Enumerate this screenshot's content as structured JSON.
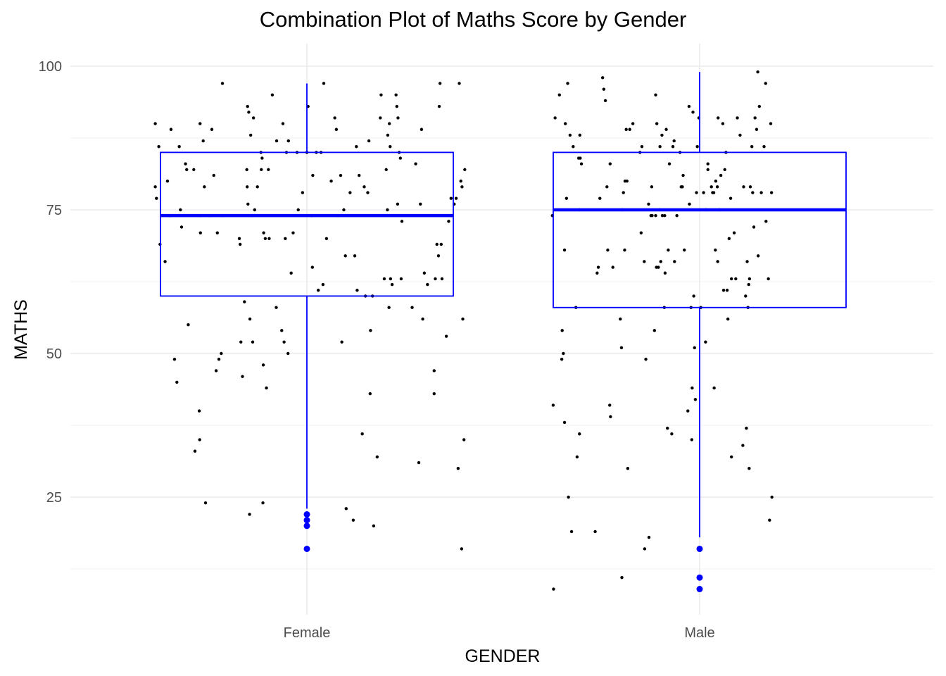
{
  "chart_data": {
    "type": "box",
    "title": "Combination Plot of Maths Score by Gender",
    "xlabel": "GENDER",
    "ylabel": "MATHS",
    "categories": [
      "Female",
      "Male"
    ],
    "y_ticks": [
      25,
      50,
      75,
      100
    ],
    "ylim": [
      5.5,
      103.5
    ],
    "grid": true,
    "colors": {
      "box": "#0000ff",
      "outlier": "#0000ff",
      "points": "#000000",
      "grid": "#ebebeb"
    },
    "boxes": [
      {
        "category": "Female",
        "whisker_low": 23,
        "q1": 60,
        "median": 74,
        "q3": 85,
        "whisker_high": 97,
        "outliers": [
          22,
          21,
          20,
          16
        ]
      },
      {
        "category": "Male",
        "whisker_low": 18,
        "q1": 58,
        "median": 75,
        "q3": 85,
        "whisker_high": 99,
        "outliers": [
          16,
          11,
          9
        ]
      }
    ],
    "jitter_points": [
      {
        "x": -0.386,
        "y": 90
      },
      {
        "x": -0.377,
        "y": 86
      },
      {
        "x": -0.386,
        "y": 79
      },
      {
        "x": -0.383,
        "y": 77
      },
      {
        "x": -0.374,
        "y": 69
      },
      {
        "x": -0.361,
        "y": 66
      },
      {
        "x": -0.355,
        "y": 80
      },
      {
        "x": -0.351,
        "y": 74
      },
      {
        "x": -0.347,
        "y": 74
      },
      {
        "x": -0.346,
        "y": 89
      },
      {
        "x": -0.337,
        "y": 49
      },
      {
        "x": -0.331,
        "y": 45
      },
      {
        "x": -0.325,
        "y": 86
      },
      {
        "x": -0.322,
        "y": 75
      },
      {
        "x": -0.319,
        "y": 72
      },
      {
        "x": -0.309,
        "y": 83
      },
      {
        "x": -0.306,
        "y": 82
      },
      {
        "x": -0.302,
        "y": 55
      },
      {
        "x": -0.288,
        "y": 82
      },
      {
        "x": -0.285,
        "y": 33
      },
      {
        "x": -0.274,
        "y": 40
      },
      {
        "x": -0.273,
        "y": 35
      },
      {
        "x": -0.272,
        "y": 90
      },
      {
        "x": -0.271,
        "y": 74
      },
      {
        "x": -0.271,
        "y": 71
      },
      {
        "x": -0.264,
        "y": 87
      },
      {
        "x": -0.261,
        "y": 79
      },
      {
        "x": -0.258,
        "y": 24
      },
      {
        "x": -0.248,
        "y": 74
      },
      {
        "x": -0.242,
        "y": 89
      },
      {
        "x": -0.237,
        "y": 81
      },
      {
        "x": -0.231,
        "y": 47
      },
      {
        "x": -0.228,
        "y": 71
      },
      {
        "x": -0.224,
        "y": 49
      },
      {
        "x": -0.218,
        "y": 50
      },
      {
        "x": -0.215,
        "y": 97
      },
      {
        "x": -0.215,
        "y": 74
      },
      {
        "x": -0.172,
        "y": 70
      },
      {
        "x": -0.17,
        "y": 69
      },
      {
        "x": -0.168,
        "y": 52
      },
      {
        "x": -0.164,
        "y": 46
      },
      {
        "x": -0.159,
        "y": 59
      },
      {
        "x": -0.153,
        "y": 82
      },
      {
        "x": -0.152,
        "y": 79
      },
      {
        "x": -0.151,
        "y": 93
      },
      {
        "x": -0.15,
        "y": 76
      },
      {
        "x": -0.148,
        "y": 92
      },
      {
        "x": -0.146,
        "y": 22
      },
      {
        "x": -0.145,
        "y": 56
      },
      {
        "x": -0.143,
        "y": 88
      },
      {
        "x": -0.14,
        "y": 74
      },
      {
        "x": -0.138,
        "y": 52
      },
      {
        "x": -0.136,
        "y": 91
      },
      {
        "x": -0.133,
        "y": 75
      },
      {
        "x": -0.126,
        "y": 79
      },
      {
        "x": -0.117,
        "y": 85
      },
      {
        "x": -0.116,
        "y": 82
      },
      {
        "x": -0.114,
        "y": 84
      },
      {
        "x": -0.112,
        "y": 24
      },
      {
        "x": -0.111,
        "y": 48
      },
      {
        "x": -0.11,
        "y": 71
      },
      {
        "x": -0.106,
        "y": 70
      },
      {
        "x": -0.103,
        "y": 44
      },
      {
        "x": -0.098,
        "y": 82
      },
      {
        "x": -0.096,
        "y": 70
      },
      {
        "x": -0.088,
        "y": 95
      },
      {
        "x": -0.078,
        "y": 58
      },
      {
        "x": -0.077,
        "y": 87
      },
      {
        "x": -0.064,
        "y": 54
      },
      {
        "x": -0.061,
        "y": 90
      },
      {
        "x": -0.058,
        "y": 52
      },
      {
        "x": -0.055,
        "y": 70
      },
      {
        "x": -0.052,
        "y": 85
      },
      {
        "x": -0.048,
        "y": 50
      },
      {
        "x": -0.047,
        "y": 87
      },
      {
        "x": -0.04,
        "y": 64
      },
      {
        "x": -0.035,
        "y": 71
      },
      {
        "x": -0.025,
        "y": 85
      },
      {
        "x": -0.022,
        "y": 75
      },
      {
        "x": -0.011,
        "y": 78
      },
      {
        "x": 0.0,
        "y": 85
      },
      {
        "x": 0.003,
        "y": 93
      },
      {
        "x": 0.012,
        "y": 74
      },
      {
        "x": 0.014,
        "y": 65
      },
      {
        "x": 0.015,
        "y": 81
      },
      {
        "x": 0.024,
        "y": 85
      },
      {
        "x": 0.029,
        "y": 61
      },
      {
        "x": 0.036,
        "y": 85
      },
      {
        "x": 0.041,
        "y": 62
      },
      {
        "x": 0.043,
        "y": 97
      },
      {
        "x": 0.05,
        "y": 70
      },
      {
        "x": 0.062,
        "y": 80
      },
      {
        "x": 0.071,
        "y": 91
      },
      {
        "x": 0.075,
        "y": 89
      },
      {
        "x": 0.079,
        "y": 74
      },
      {
        "x": 0.086,
        "y": 81
      },
      {
        "x": 0.089,
        "y": 52
      },
      {
        "x": 0.094,
        "y": 75
      },
      {
        "x": 0.098,
        "y": 67
      },
      {
        "x": 0.1,
        "y": 23
      },
      {
        "x": 0.11,
        "y": 78
      },
      {
        "x": 0.118,
        "y": 21
      },
      {
        "x": 0.122,
        "y": 67
      },
      {
        "x": 0.126,
        "y": 86
      },
      {
        "x": 0.128,
        "y": 61
      },
      {
        "x": 0.133,
        "y": 81
      },
      {
        "x": 0.141,
        "y": 36
      },
      {
        "x": 0.146,
        "y": 79
      },
      {
        "x": 0.149,
        "y": 60
      },
      {
        "x": 0.155,
        "y": 78
      },
      {
        "x": 0.158,
        "y": 87
      },
      {
        "x": 0.161,
        "y": 43
      },
      {
        "x": 0.162,
        "y": 54
      },
      {
        "x": 0.167,
        "y": 60
      },
      {
        "x": 0.17,
        "y": 20
      },
      {
        "x": 0.179,
        "y": 32
      },
      {
        "x": 0.187,
        "y": 91
      },
      {
        "x": 0.189,
        "y": 95
      },
      {
        "x": 0.197,
        "y": 63
      },
      {
        "x": 0.202,
        "y": 82
      },
      {
        "x": 0.205,
        "y": 75
      },
      {
        "x": 0.206,
        "y": 88
      },
      {
        "x": 0.209,
        "y": 58
      },
      {
        "x": 0.21,
        "y": 90
      },
      {
        "x": 0.212,
        "y": 86
      },
      {
        "x": 0.213,
        "y": 63
      },
      {
        "x": 0.217,
        "y": 62
      },
      {
        "x": 0.227,
        "y": 95
      },
      {
        "x": 0.229,
        "y": 93
      },
      {
        "x": 0.231,
        "y": 76
      },
      {
        "x": 0.232,
        "y": 91
      },
      {
        "x": 0.235,
        "y": 85
      },
      {
        "x": 0.238,
        "y": 84
      },
      {
        "x": 0.24,
        "y": 63
      },
      {
        "x": 0.242,
        "y": 73
      },
      {
        "x": 0.268,
        "y": 58
      },
      {
        "x": 0.277,
        "y": 83
      },
      {
        "x": 0.285,
        "y": 31
      },
      {
        "x": 0.289,
        "y": 76
      },
      {
        "x": 0.292,
        "y": 89
      },
      {
        "x": 0.295,
        "y": 56
      },
      {
        "x": 0.299,
        "y": 64
      },
      {
        "x": 0.307,
        "y": 62
      },
      {
        "x": 0.324,
        "y": 47
      },
      {
        "x": 0.324,
        "y": 43
      },
      {
        "x": 0.327,
        "y": 63
      },
      {
        "x": 0.331,
        "y": 69
      },
      {
        "x": 0.335,
        "y": 67
      },
      {
        "x": 0.337,
        "y": 93
      },
      {
        "x": 0.339,
        "y": 97
      },
      {
        "x": 0.342,
        "y": 69
      },
      {
        "x": 0.344,
        "y": 63
      },
      {
        "x": 0.355,
        "y": 53
      },
      {
        "x": 0.361,
        "y": 73
      },
      {
        "x": 0.367,
        "y": 77
      },
      {
        "x": 0.368,
        "y": 74
      },
      {
        "x": 0.375,
        "y": 76
      },
      {
        "x": 0.38,
        "y": 77
      },
      {
        "x": 0.385,
        "y": 30
      },
      {
        "x": 0.388,
        "y": 97
      },
      {
        "x": 0.392,
        "y": 80
      },
      {
        "x": 0.394,
        "y": 16
      },
      {
        "x": 0.395,
        "y": 79
      },
      {
        "x": 0.397,
        "y": 56
      },
      {
        "x": 0.4,
        "y": 35
      },
      {
        "x": 0.402,
        "y": 82
      },
      {
        "x": 0.625,
        "y": 74
      },
      {
        "x": 0.627,
        "y": 41
      },
      {
        "x": 0.628,
        "y": 9
      },
      {
        "x": 0.632,
        "y": 91
      },
      {
        "x": 0.643,
        "y": 95
      },
      {
        "x": 0.649,
        "y": 49
      },
      {
        "x": 0.65,
        "y": 54
      },
      {
        "x": 0.653,
        "y": 50
      },
      {
        "x": 0.656,
        "y": 68
      },
      {
        "x": 0.656,
        "y": 38
      },
      {
        "x": 0.658,
        "y": 90
      },
      {
        "x": 0.661,
        "y": 77
      },
      {
        "x": 0.664,
        "y": 97
      },
      {
        "x": 0.666,
        "y": 25
      },
      {
        "x": 0.67,
        "y": 88
      },
      {
        "x": 0.674,
        "y": 19
      },
      {
        "x": 0.678,
        "y": 86
      },
      {
        "x": 0.685,
        "y": 58
      },
      {
        "x": 0.688,
        "y": 32
      },
      {
        "x": 0.692,
        "y": 84
      },
      {
        "x": 0.694,
        "y": 36
      },
      {
        "x": 0.694,
        "y": 75
      },
      {
        "x": 0.695,
        "y": 88
      },
      {
        "x": 0.696,
        "y": 84
      },
      {
        "x": 0.699,
        "y": 83
      },
      {
        "x": 0.734,
        "y": 19
      },
      {
        "x": 0.739,
        "y": 64
      },
      {
        "x": 0.742,
        "y": 65
      },
      {
        "x": 0.746,
        "y": 77
      },
      {
        "x": 0.753,
        "y": 98
      },
      {
        "x": 0.756,
        "y": 96
      },
      {
        "x": 0.76,
        "y": 94
      },
      {
        "x": 0.764,
        "y": 79
      },
      {
        "x": 0.766,
        "y": 68
      },
      {
        "x": 0.771,
        "y": 41
      },
      {
        "x": 0.772,
        "y": 83
      },
      {
        "x": 0.773,
        "y": 39
      },
      {
        "x": 0.779,
        "y": 65
      },
      {
        "x": 0.798,
        "y": 56
      },
      {
        "x": 0.801,
        "y": 51
      },
      {
        "x": 0.802,
        "y": 11
      },
      {
        "x": 0.803,
        "y": 75
      },
      {
        "x": 0.806,
        "y": 78
      },
      {
        "x": 0.809,
        "y": 68
      },
      {
        "x": 0.81,
        "y": 80
      },
      {
        "x": 0.813,
        "y": 89
      },
      {
        "x": 0.815,
        "y": 80
      },
      {
        "x": 0.817,
        "y": 30
      },
      {
        "x": 0.822,
        "y": 89
      },
      {
        "x": 0.83,
        "y": 90
      },
      {
        "x": 0.848,
        "y": 85
      },
      {
        "x": 0.851,
        "y": 71
      },
      {
        "x": 0.853,
        "y": 86
      },
      {
        "x": 0.859,
        "y": 66
      },
      {
        "x": 0.86,
        "y": 16
      },
      {
        "x": 0.863,
        "y": 49
      },
      {
        "x": 0.87,
        "y": 76
      },
      {
        "x": 0.871,
        "y": 18
      },
      {
        "x": 0.876,
        "y": 74
      },
      {
        "x": 0.878,
        "y": 79
      },
      {
        "x": 0.879,
        "y": 74
      },
      {
        "x": 0.885,
        "y": 54
      },
      {
        "x": 0.888,
        "y": 74
      },
      {
        "x": 0.888,
        "y": 95
      },
      {
        "x": 0.89,
        "y": 65
      },
      {
        "x": 0.891,
        "y": 90
      },
      {
        "x": 0.895,
        "y": 65
      },
      {
        "x": 0.898,
        "y": 75
      },
      {
        "x": 0.899,
        "y": 86
      },
      {
        "x": 0.901,
        "y": 66
      },
      {
        "x": 0.904,
        "y": 88
      },
      {
        "x": 0.905,
        "y": 74
      },
      {
        "x": 0.91,
        "y": 58
      },
      {
        "x": 0.911,
        "y": 74
      },
      {
        "x": 0.912,
        "y": 64
      },
      {
        "x": 0.915,
        "y": 89
      },
      {
        "x": 0.918,
        "y": 37
      },
      {
        "x": 0.92,
        "y": 68
      },
      {
        "x": 0.923,
        "y": 83
      },
      {
        "x": 0.929,
        "y": 36
      },
      {
        "x": 0.932,
        "y": 86
      },
      {
        "x": 0.935,
        "y": 87
      },
      {
        "x": 0.936,
        "y": 66
      },
      {
        "x": 0.942,
        "y": 74
      },
      {
        "x": 0.95,
        "y": 85
      },
      {
        "x": 0.953,
        "y": 79
      },
      {
        "x": 0.956,
        "y": 79
      },
      {
        "x": 0.958,
        "y": 81
      },
      {
        "x": 0.961,
        "y": 68
      },
      {
        "x": 0.97,
        "y": 40
      },
      {
        "x": 0.973,
        "y": 93
      },
      {
        "x": 0.974,
        "y": 76
      },
      {
        "x": 0.978,
        "y": 58
      },
      {
        "x": 0.98,
        "y": 35
      },
      {
        "x": 0.981,
        "y": 44
      },
      {
        "x": 0.983,
        "y": 92
      },
      {
        "x": 0.985,
        "y": 60
      },
      {
        "x": 0.987,
        "y": 51
      },
      {
        "x": 0.989,
        "y": 42
      },
      {
        "x": 0.992,
        "y": 78
      },
      {
        "x": 0.994,
        "y": 86
      },
      {
        "x": 0.998,
        "y": 91
      },
      {
        "x": 1.003,
        "y": 58
      },
      {
        "x": 1.01,
        "y": 78
      },
      {
        "x": 1.015,
        "y": 52
      },
      {
        "x": 1.016,
        "y": 75
      },
      {
        "x": 1.021,
        "y": 82
      },
      {
        "x": 1.021,
        "y": 83
      },
      {
        "x": 1.03,
        "y": 79
      },
      {
        "x": 1.033,
        "y": 78
      },
      {
        "x": 1.036,
        "y": 78
      },
      {
        "x": 1.037,
        "y": 44
      },
      {
        "x": 1.04,
        "y": 68
      },
      {
        "x": 1.041,
        "y": 80
      },
      {
        "x": 1.045,
        "y": 79
      },
      {
        "x": 1.046,
        "y": 66
      },
      {
        "x": 1.047,
        "y": 91
      },
      {
        "x": 1.05,
        "y": 75
      },
      {
        "x": 1.054,
        "y": 81
      },
      {
        "x": 1.059,
        "y": 90
      },
      {
        "x": 1.061,
        "y": 61
      },
      {
        "x": 1.064,
        "y": 82
      },
      {
        "x": 1.067,
        "y": 85
      },
      {
        "x": 1.07,
        "y": 61
      },
      {
        "x": 1.072,
        "y": 56
      },
      {
        "x": 1.075,
        "y": 70
      },
      {
        "x": 1.079,
        "y": 77
      },
      {
        "x": 1.081,
        "y": 32
      },
      {
        "x": 1.081,
        "y": 63
      },
      {
        "x": 1.088,
        "y": 71
      },
      {
        "x": 1.092,
        "y": 63
      },
      {
        "x": 1.096,
        "y": 91
      },
      {
        "x": 1.103,
        "y": 88
      },
      {
        "x": 1.11,
        "y": 34
      },
      {
        "x": 1.112,
        "y": 79
      },
      {
        "x": 1.117,
        "y": 60
      },
      {
        "x": 1.119,
        "y": 37
      },
      {
        "x": 1.121,
        "y": 66
      },
      {
        "x": 1.123,
        "y": 58
      },
      {
        "x": 1.125,
        "y": 62
      },
      {
        "x": 1.126,
        "y": 30
      },
      {
        "x": 1.127,
        "y": 63
      },
      {
        "x": 1.129,
        "y": 79
      },
      {
        "x": 1.133,
        "y": 86
      },
      {
        "x": 1.135,
        "y": 78
      },
      {
        "x": 1.138,
        "y": 72
      },
      {
        "x": 1.141,
        "y": 91
      },
      {
        "x": 1.145,
        "y": 89
      },
      {
        "x": 1.148,
        "y": 99
      },
      {
        "x": 1.149,
        "y": 67
      },
      {
        "x": 1.152,
        "y": 93
      },
      {
        "x": 1.157,
        "y": 78
      },
      {
        "x": 1.164,
        "y": 86
      },
      {
        "x": 1.168,
        "y": 97
      },
      {
        "x": 1.169,
        "y": 73
      },
      {
        "x": 1.175,
        "y": 63
      },
      {
        "x": 1.178,
        "y": 21
      },
      {
        "x": 1.181,
        "y": 90
      },
      {
        "x": 1.183,
        "y": 78
      },
      {
        "x": 1.184,
        "y": 25
      }
    ]
  }
}
